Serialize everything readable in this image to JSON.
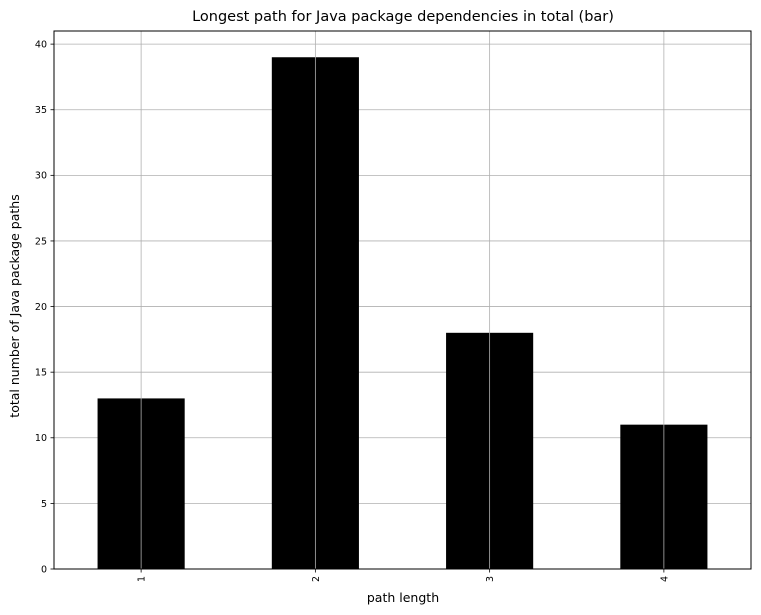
{
  "chart_data": {
    "type": "bar",
    "title": "Longest path for Java package dependencies in total (bar)",
    "xlabel": "path length",
    "ylabel": "total number of Java package paths",
    "categories": [
      "1",
      "2",
      "3",
      "4"
    ],
    "values": [
      13,
      39,
      18,
      11
    ],
    "ylim": [
      0,
      41
    ],
    "yticks": [
      0,
      5,
      10,
      15,
      20,
      25,
      30,
      35,
      40
    ],
    "grid": true,
    "bar_color": "#000000",
    "x_tick_rotation": "vertical"
  }
}
